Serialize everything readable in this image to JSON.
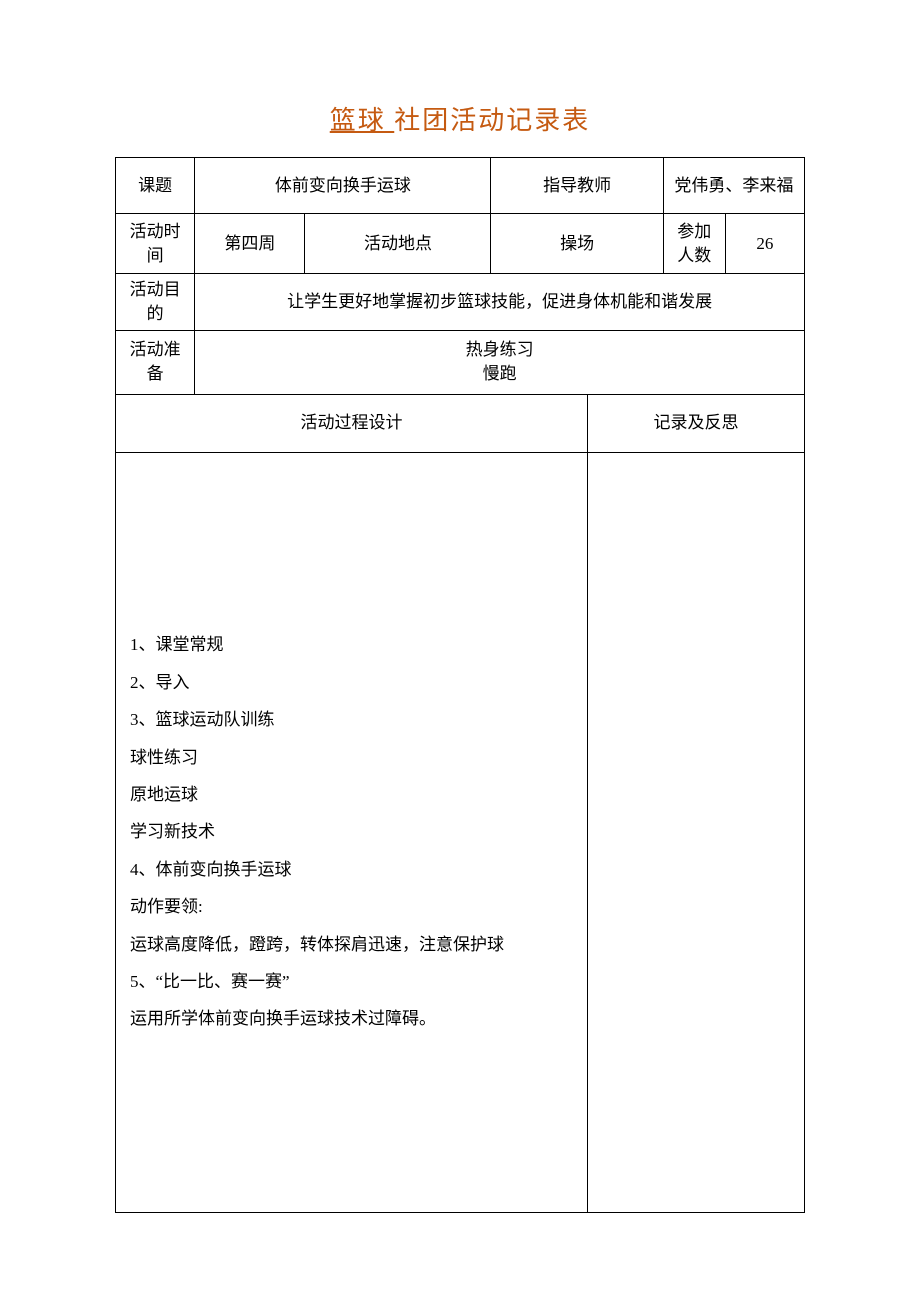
{
  "title_underline": " 篮球 ",
  "title_rest": "社团活动记录表",
  "labels": {
    "topic": "课题",
    "instructor": "指导教师",
    "activity_time": "活动时间",
    "activity_place": "活动地点",
    "participants": "参加人数",
    "activity_purpose": "活动目的",
    "activity_prep": "活动准备",
    "process_design": "活动过程设计",
    "record_reflection": "记录及反思"
  },
  "values": {
    "topic": "体前变向换手运球",
    "instructor": "党伟勇、李来福",
    "activity_time": "第四周",
    "activity_place": "操场",
    "participants": "26",
    "activity_purpose": "让学生更好地掌握初步篮球技能，促进身体机能和谐发展",
    "activity_prep_line1": "热身练习",
    "activity_prep_line2": "慢跑"
  },
  "process": {
    "line1": "1、课堂常规",
    "line2": "2、导入",
    "line3": "3、篮球运动队训练",
    "line4": "球性练习",
    "line5": "原地运球",
    "line6": "学习新技术",
    "line7": "4、体前变向换手运球",
    "line8": "动作要领:",
    "line9": "运球高度降低，蹬跨，转体探肩迅速，注意保护球",
    "line10": "5、“比一比、赛一赛”",
    "line11": "运用所学体前变向换手运球技术过障碍。"
  },
  "colors": {
    "title_color": "#c55a11",
    "border_color": "#000000",
    "background": "#ffffff",
    "text_color": "#000000"
  },
  "fonts": {
    "title_size_pt": 20,
    "body_size_pt": 12,
    "family": "SimSun"
  },
  "structure": {
    "type": "table",
    "columns": 8,
    "column_widths_pct": [
      11.5,
      16,
      16,
      11,
      14,
      11,
      9,
      11.5
    ]
  }
}
